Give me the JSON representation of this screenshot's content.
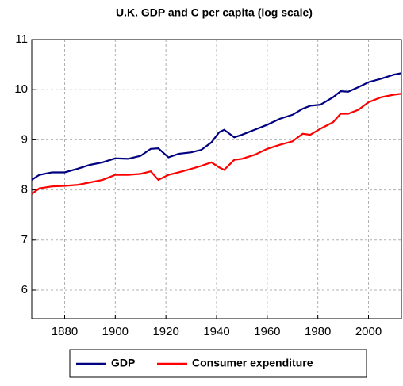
{
  "chart_data": {
    "type": "line",
    "title": "U.K.  GDP and C per capita (log scale)",
    "x": [
      1867,
      1870,
      1875,
      1880,
      1885,
      1890,
      1895,
      1900,
      1905,
      1910,
      1914,
      1917,
      1921,
      1925,
      1930,
      1934,
      1938,
      1941,
      1943,
      1947,
      1950,
      1955,
      1960,
      1965,
      1970,
      1974,
      1977,
      1981,
      1986,
      1989,
      1992,
      1996,
      2000,
      2005,
      2010,
      2013
    ],
    "series": [
      {
        "name": "GDP",
        "color": "#000080",
        "values": [
          8.2,
          8.3,
          8.35,
          8.35,
          8.42,
          8.5,
          8.55,
          8.63,
          8.62,
          8.68,
          8.82,
          8.83,
          8.65,
          8.72,
          8.75,
          8.8,
          8.95,
          9.15,
          9.2,
          9.05,
          9.1,
          9.2,
          9.3,
          9.42,
          9.5,
          9.62,
          9.68,
          9.7,
          9.85,
          9.97,
          9.96,
          10.05,
          10.15,
          10.22,
          10.3,
          10.33
        ]
      },
      {
        "name": "Consumer expenditure",
        "color": "#ff0000",
        "values": [
          7.92,
          8.03,
          8.07,
          8.08,
          8.1,
          8.15,
          8.2,
          8.3,
          8.3,
          8.32,
          8.37,
          8.2,
          8.3,
          8.35,
          8.42,
          8.48,
          8.55,
          8.45,
          8.4,
          8.6,
          8.62,
          8.7,
          8.82,
          8.9,
          8.97,
          9.12,
          9.1,
          9.22,
          9.35,
          9.52,
          9.52,
          9.6,
          9.75,
          9.85,
          9.9,
          9.92
        ]
      }
    ],
    "xlim": [
      1867,
      2013
    ],
    "xticks": [
      1880,
      1900,
      1920,
      1940,
      1960,
      1980,
      2000
    ],
    "ylim": [
      5.43,
      11
    ],
    "yticks": [
      6,
      7,
      8,
      9,
      10,
      11
    ],
    "grid": true,
    "legend": "bottom"
  }
}
